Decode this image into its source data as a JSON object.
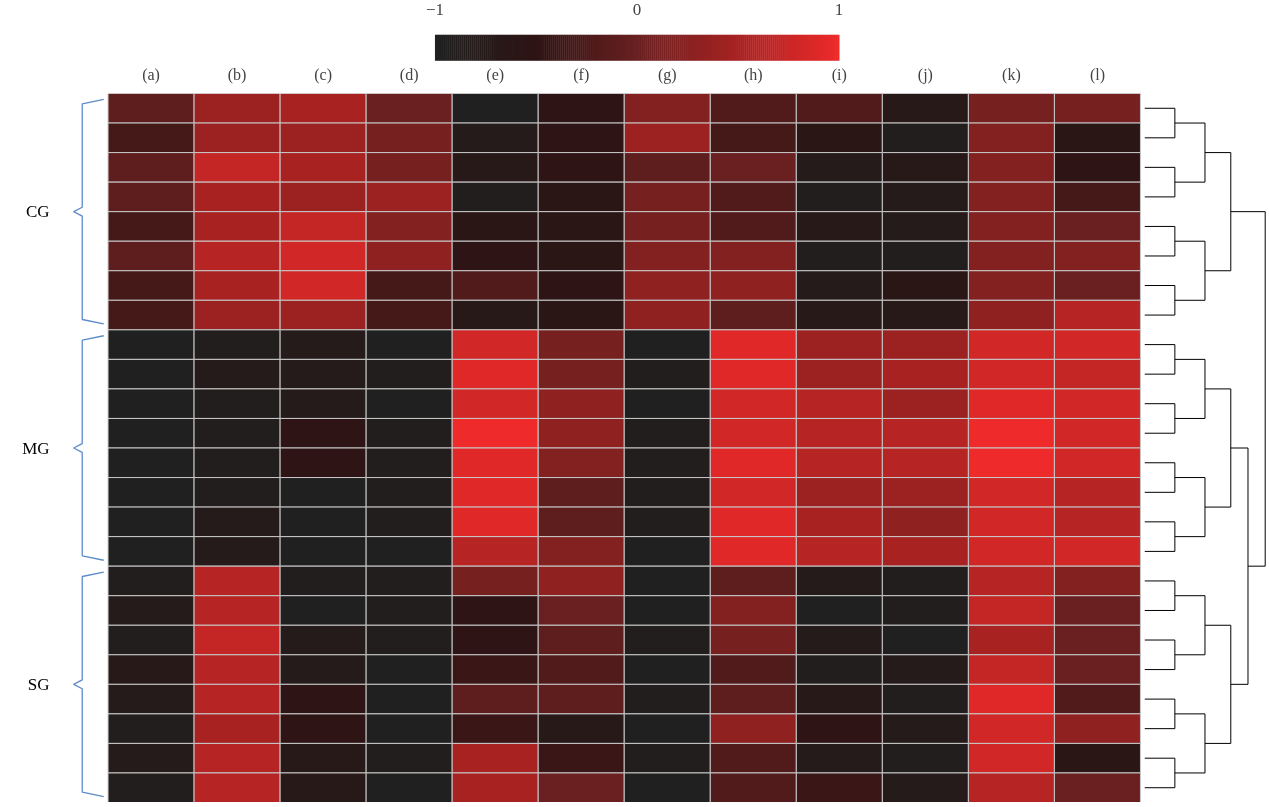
{
  "chart_data": {
    "type": "heatmap",
    "categories": [
      "(a)",
      "(b)",
      "(c)",
      "(d)",
      "(e)",
      "(f)",
      "(g)",
      "(h)",
      "(i)",
      "(j)",
      "(k)",
      "(l)"
    ],
    "y_categories": [
      null,
      null,
      null,
      null,
      null,
      null,
      null,
      null,
      null,
      null,
      null,
      null,
      null,
      null,
      null,
      null,
      null,
      null,
      null,
      null,
      null,
      null,
      null,
      null
    ],
    "cells": [
      [
        -0.1,
        0.4,
        0.5,
        0,
        -1,
        -0.5,
        0.2,
        -0.2,
        -0.2,
        -0.7,
        0.1,
        0.1
      ],
      [
        -0.3,
        0.4,
        0.4,
        0.1,
        -0.8,
        -0.5,
        0.4,
        -0.3,
        -0.6,
        -0.9,
        0.2,
        -0.6
      ],
      [
        -0.1,
        0.7,
        0.5,
        0.1,
        -0.7,
        -0.5,
        -0.1,
        0,
        -0.8,
        -0.7,
        0.2,
        -0.5
      ],
      [
        -0.1,
        0.5,
        0.4,
        0.4,
        -0.9,
        -0.6,
        0.1,
        -0.2,
        -0.9,
        -0.8,
        0.2,
        -0.3
      ],
      [
        -0.3,
        0.5,
        0.7,
        0.2,
        -0.6,
        -0.6,
        0.1,
        -0.2,
        -0.7,
        -0.8,
        0.2,
        0
      ],
      [
        -0.1,
        0.6,
        0.8,
        0.3,
        -0.5,
        -0.6,
        0.2,
        0.2,
        -0.9,
        -0.9,
        0.2,
        0.2
      ],
      [
        -0.3,
        0.5,
        0.8,
        -0.3,
        -0.2,
        -0.5,
        0.3,
        0.3,
        -0.8,
        -0.6,
        0.2,
        0
      ],
      [
        -0.3,
        0.4,
        0.4,
        -0.3,
        -0.7,
        -0.6,
        0.3,
        -0.1,
        -0.7,
        -0.7,
        0.3,
        0.6
      ],
      [
        -1,
        -0.9,
        -0.8,
        -1,
        0.8,
        0.1,
        -1,
        0.9,
        0.4,
        0.4,
        0.8,
        0.8
      ],
      [
        -1,
        -0.8,
        -0.8,
        -0.9,
        0.9,
        0.1,
        -0.9,
        0.9,
        0.4,
        0.5,
        0.8,
        0.7
      ],
      [
        -1,
        -0.9,
        -0.8,
        -1,
        0.8,
        0.3,
        -1,
        0.8,
        0.6,
        0.4,
        0.9,
        0.8
      ],
      [
        -1,
        -0.9,
        -0.5,
        -0.9,
        1,
        0.3,
        -0.9,
        0.8,
        0.6,
        0.6,
        1,
        0.8
      ],
      [
        -1,
        -0.9,
        -0.5,
        -0.9,
        0.9,
        0.2,
        -0.9,
        0.9,
        0.6,
        0.6,
        1,
        0.8
      ],
      [
        -1,
        -0.9,
        -1,
        -0.9,
        0.9,
        -0.1,
        -0.9,
        0.8,
        0.4,
        0.4,
        0.8,
        0.6
      ],
      [
        -1,
        -0.8,
        -1,
        -0.9,
        0.9,
        -0.1,
        -0.9,
        0.9,
        0.5,
        0.3,
        0.8,
        0.6
      ],
      [
        -1,
        -0.8,
        -1,
        -1,
        0.6,
        0.2,
        -1,
        0.9,
        0.6,
        0.5,
        0.8,
        0.8
      ],
      [
        -0.9,
        0.6,
        -0.9,
        -0.9,
        0.1,
        0.3,
        -1,
        -0.1,
        -0.8,
        -0.9,
        0.6,
        0.2
      ],
      [
        -0.8,
        0.6,
        -1,
        -0.9,
        -0.5,
        0,
        -1,
        0.2,
        -1,
        -0.9,
        0.7,
        0
      ],
      [
        -0.9,
        0.7,
        -0.8,
        -0.9,
        -0.5,
        -0.1,
        -0.9,
        0.1,
        -0.8,
        -1,
        0.5,
        0
      ],
      [
        -0.7,
        0.6,
        -0.8,
        -1,
        -0.4,
        -0.2,
        -1,
        -0.2,
        -0.9,
        -0.8,
        0.7,
        0
      ],
      [
        -0.8,
        0.6,
        -0.5,
        -1,
        -0.1,
        -0.1,
        -0.9,
        -0.1,
        -0.7,
        -0.9,
        0.9,
        -0.2
      ],
      [
        -0.9,
        0.5,
        -0.5,
        -1,
        -0.4,
        -0.7,
        -1,
        0.3,
        -0.5,
        -0.8,
        0.8,
        0.3
      ],
      [
        -0.8,
        0.6,
        -0.7,
        -0.9,
        0.5,
        -0.4,
        -0.9,
        -0.2,
        -0.8,
        -0.9,
        0.8,
        -0.6
      ],
      [
        -0.9,
        0.6,
        -0.7,
        -1,
        0.5,
        0,
        -1,
        -0.2,
        -0.4,
        -0.8,
        0.6,
        0
      ]
    ],
    "clim": [
      -1,
      1
    ],
    "cticks": [
      {
        "value": -1,
        "label": "−1"
      },
      0,
      1
    ],
    "annotations": [
      "CG",
      "MG",
      "SG"
    ]
  }
}
